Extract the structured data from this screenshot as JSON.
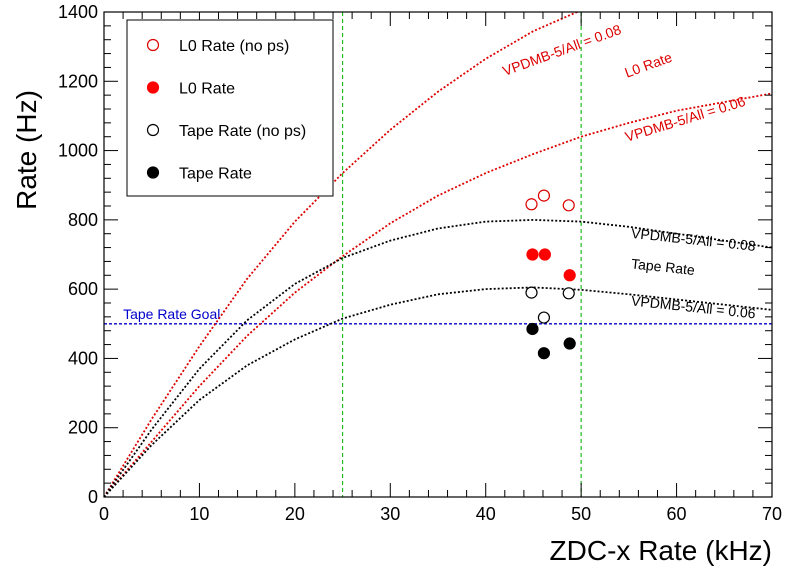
{
  "chart_data": {
    "type": "scatter",
    "title": "",
    "xlabel": "ZDC-x Rate (kHz)",
    "ylabel": "Rate (Hz)",
    "xlim": [
      0,
      70
    ],
    "ylim": [
      0,
      1400
    ],
    "x_ticks": [
      0,
      10,
      20,
      30,
      40,
      50,
      60,
      70
    ],
    "y_ticks": [
      0,
      200,
      400,
      600,
      800,
      1000,
      1200,
      1400
    ],
    "grid": false,
    "legend_position": "top-left",
    "vertical_guides": [
      {
        "x": 25,
        "color": "#22bb22"
      },
      {
        "x": 50,
        "color": "#22bb22"
      }
    ],
    "horizontal_guides": [
      {
        "y": 500,
        "color": "#0000cc",
        "label": "Tape Rate Goal"
      }
    ],
    "series": [
      {
        "name": "L0 Rate (no ps)",
        "marker": "open-circle",
        "color": "#dd0000",
        "points": [
          [
            44.8,
            845
          ],
          [
            46.1,
            870
          ],
          [
            48.7,
            842
          ]
        ]
      },
      {
        "name": "L0 Rate",
        "marker": "filled-circle",
        "color": "#ff0000",
        "points": [
          [
            44.9,
            700
          ],
          [
            46.2,
            700
          ],
          [
            48.8,
            640
          ]
        ]
      },
      {
        "name": "Tape Rate (no ps)",
        "marker": "open-circle",
        "color": "#000000",
        "points": [
          [
            44.8,
            590
          ],
          [
            46.1,
            518
          ],
          [
            48.7,
            588
          ]
        ]
      },
      {
        "name": "Tape Rate",
        "marker": "filled-circle",
        "color": "#000000",
        "points": [
          [
            44.9,
            485
          ],
          [
            46.1,
            415
          ],
          [
            48.8,
            443
          ]
        ]
      }
    ],
    "curves": [
      {
        "id": "l0-008",
        "color": "#dd0000",
        "points": [
          [
            0,
            0
          ],
          [
            5,
            225
          ],
          [
            10,
            435
          ],
          [
            15,
            630
          ],
          [
            20,
            795
          ],
          [
            25,
            935
          ],
          [
            30,
            1060
          ],
          [
            35,
            1170
          ],
          [
            40,
            1265
          ],
          [
            45,
            1345
          ],
          [
            50,
            1405
          ]
        ]
      },
      {
        "id": "l0-006",
        "color": "#dd0000",
        "points": [
          [
            0,
            0
          ],
          [
            5,
            160
          ],
          [
            10,
            320
          ],
          [
            15,
            465
          ],
          [
            20,
            590
          ],
          [
            25,
            695
          ],
          [
            30,
            790
          ],
          [
            35,
            870
          ],
          [
            40,
            935
          ],
          [
            45,
            990
          ],
          [
            50,
            1040
          ],
          [
            55,
            1080
          ],
          [
            60,
            1115
          ],
          [
            65,
            1140
          ],
          [
            70,
            1165
          ]
        ]
      },
      {
        "id": "tape-008",
        "color": "#000000",
        "points": [
          [
            0,
            0
          ],
          [
            5,
            195
          ],
          [
            10,
            370
          ],
          [
            15,
            510
          ],
          [
            20,
            615
          ],
          [
            25,
            690
          ],
          [
            30,
            740
          ],
          [
            35,
            775
          ],
          [
            40,
            795
          ],
          [
            45,
            800
          ],
          [
            50,
            795
          ],
          [
            55,
            780
          ],
          [
            60,
            760
          ],
          [
            65,
            740
          ],
          [
            70,
            720
          ]
        ]
      },
      {
        "id": "tape-006",
        "color": "#000000",
        "points": [
          [
            0,
            0
          ],
          [
            5,
            150
          ],
          [
            10,
            280
          ],
          [
            15,
            380
          ],
          [
            20,
            455
          ],
          [
            25,
            515
          ],
          [
            30,
            555
          ],
          [
            35,
            585
          ],
          [
            40,
            600
          ],
          [
            45,
            605
          ],
          [
            50,
            598
          ],
          [
            55,
            585
          ],
          [
            60,
            570
          ],
          [
            65,
            555
          ],
          [
            70,
            540
          ]
        ]
      }
    ],
    "annotations": [
      {
        "text": "VPDMB-5/All = 0.08",
        "x": 42,
        "y": 1215,
        "angle": -20,
        "color": "#dd0000"
      },
      {
        "text": "L0 Rate",
        "x": 54.8,
        "y": 1210,
        "angle": -20,
        "color": "#dd0000"
      },
      {
        "text": "VPDMB-5/All = 0.06",
        "x": 54.8,
        "y": 1025,
        "angle": -17,
        "color": "#dd0000"
      },
      {
        "text": "VPDMB-5/All = 0.08",
        "x": 55.2,
        "y": 748,
        "angle": 6,
        "color": "#000000"
      },
      {
        "text": "Tape Rate",
        "x": 55.2,
        "y": 660,
        "angle": 6,
        "color": "#000000"
      },
      {
        "text": "VPDMB-5/All = 0.06",
        "x": 55.2,
        "y": 553,
        "angle": 6,
        "color": "#000000"
      }
    ]
  }
}
